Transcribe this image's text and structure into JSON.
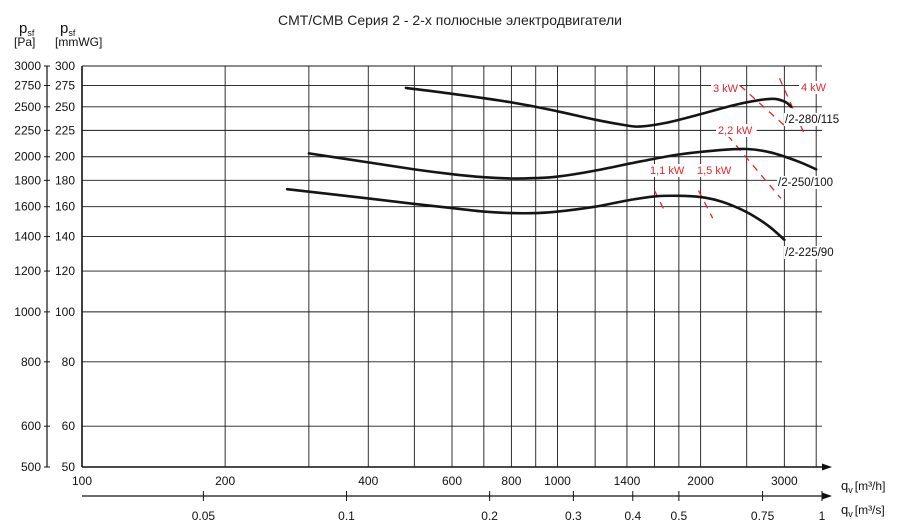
{
  "chart_data": {
    "type": "line",
    "title": "CMT/CMB   Серия 2 - 2-х полюсные электродвигатели",
    "ylabel_pa": "p",
    "ylabel_pa_sub": "sf",
    "ylabel_pa_unit": "[Pa]",
    "ylabel_mmwg": "p",
    "ylabel_mmwg_sub": "sf",
    "ylabel_mmwg_unit": "[mmWG]",
    "xlabel_m3h": "q",
    "xlabel_m3h_sub": "v",
    "xlabel_m3h_unit": "[m³/h]",
    "xlabel_m3s": "q",
    "xlabel_m3s_sub": "v",
    "xlabel_m3s_unit": "[m³/s]",
    "x_scale": "log",
    "y_scale": "log",
    "xlim_m3h": [
      100,
      3600
    ],
    "ylim_mmwg": [
      50,
      300
    ],
    "grid": true,
    "x_ticks_m3h": [
      {
        "v": 100,
        "label": "100"
      },
      {
        "v": 200,
        "label": "200"
      },
      {
        "v": 300,
        "label": ""
      },
      {
        "v": 400,
        "label": "400"
      },
      {
        "v": 500,
        "label": ""
      },
      {
        "v": 600,
        "label": "600"
      },
      {
        "v": 700,
        "label": ""
      },
      {
        "v": 800,
        "label": "800"
      },
      {
        "v": 900,
        "label": ""
      },
      {
        "v": 1000,
        "label": "1000"
      },
      {
        "v": 1200,
        "label": ""
      },
      {
        "v": 1400,
        "label": "1400"
      },
      {
        "v": 1600,
        "label": ""
      },
      {
        "v": 1800,
        "label": ""
      },
      {
        "v": 2000,
        "label": "2000"
      },
      {
        "v": 2500,
        "label": ""
      },
      {
        "v": 3000,
        "label": "3000"
      },
      {
        "v": 3500,
        "label": ""
      }
    ],
    "x_ticks_m3s": [
      {
        "v": 0.05,
        "label": "0.05"
      },
      {
        "v": 0.1,
        "label": "0.1"
      },
      {
        "v": 0.2,
        "label": "0.2"
      },
      {
        "v": 0.3,
        "label": "0.3"
      },
      {
        "v": 0.4,
        "label": "0.4"
      },
      {
        "v": 0.5,
        "label": "0.5"
      },
      {
        "v": 0.75,
        "label": "0.75"
      },
      {
        "v": 1,
        "label": "1"
      }
    ],
    "y_ticks_mmwg": [
      {
        "v": 50,
        "label": "50"
      },
      {
        "v": 60,
        "label": "60"
      },
      {
        "v": 80,
        "label": "80"
      },
      {
        "v": 100,
        "label": "100"
      },
      {
        "v": 120,
        "label": "120"
      },
      {
        "v": 140,
        "label": "140"
      },
      {
        "v": 160,
        "label": "160"
      },
      {
        "v": 180,
        "label": "180"
      },
      {
        "v": 200,
        "label": "200"
      },
      {
        "v": 225,
        "label": "225"
      },
      {
        "v": 250,
        "label": "250"
      },
      {
        "v": 275,
        "label": "275"
      },
      {
        "v": 300,
        "label": "300"
      }
    ],
    "y_ticks_pa": [
      {
        "v": 500,
        "label": "500"
      },
      {
        "v": 600,
        "label": "600"
      },
      {
        "v": 800,
        "label": "800"
      },
      {
        "v": 1000,
        "label": "1000"
      },
      {
        "v": 1200,
        "label": "1200"
      },
      {
        "v": 1400,
        "label": "1400"
      },
      {
        "v": 1600,
        "label": "1600"
      },
      {
        "v": 1800,
        "label": "1800"
      },
      {
        "v": 2000,
        "label": "2000"
      },
      {
        "v": 2250,
        "label": "2250"
      },
      {
        "v": 2500,
        "label": "2500"
      },
      {
        "v": 2750,
        "label": "2750"
      },
      {
        "v": 3000,
        "label": "3000"
      }
    ],
    "series": [
      {
        "name": "/2-280/115",
        "x": [
          480,
          600,
          800,
          1000,
          1200,
          1400,
          1500,
          1700,
          2000,
          2400,
          2800,
          3000,
          3100
        ],
        "y": [
          272,
          265,
          255,
          245,
          236,
          230,
          229,
          233,
          242,
          253,
          259,
          256,
          250
        ]
      },
      {
        "name": "/2-250/100",
        "x": [
          300,
          400,
          500,
          600,
          700,
          800,
          900,
          1000,
          1200,
          1500,
          1800,
          2200,
          2500,
          2800,
          3200,
          3500
        ],
        "y": [
          203,
          195,
          189,
          185,
          182.5,
          181.5,
          181.8,
          183,
          188,
          196,
          202,
          206,
          207,
          204,
          196,
          189
        ]
      },
      {
        "name": "/2-225/90",
        "x": [
          270,
          400,
          500,
          600,
          700,
          800,
          900,
          1000,
          1200,
          1400,
          1600,
          1800,
          2000,
          2200,
          2400,
          2600,
          2800,
          3000
        ],
        "y": [
          173,
          166,
          162,
          159,
          156.5,
          155.5,
          155.5,
          156.5,
          160,
          164.5,
          167.5,
          168,
          167,
          164,
          159,
          153,
          146,
          138
        ]
      }
    ],
    "power_lines": [
      {
        "label": "1,1 kW",
        "x1": 1600,
        "y1": 172,
        "x2": 1690,
        "y2": 155
      },
      {
        "label": "1,5 kW",
        "x1": 1980,
        "y1": 172,
        "x2": 2120,
        "y2": 152
      },
      {
        "label": "2,2 kW",
        "x1": 2280,
        "y1": 220,
        "x2": 2950,
        "y2": 166
      },
      {
        "label": "3 kW",
        "x1": 2420,
        "y1": 275,
        "x2": 3000,
        "y2": 230
      },
      {
        "label": "4 kW",
        "x1": 2930,
        "y1": 284,
        "x2": 3330,
        "y2": 218
      }
    ]
  }
}
